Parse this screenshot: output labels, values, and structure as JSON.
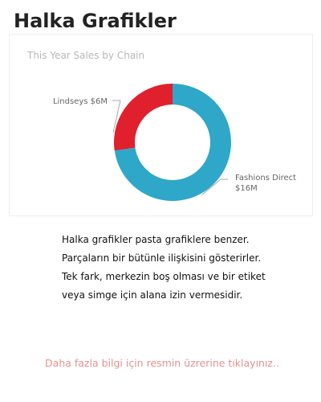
{
  "page": {
    "title": "Halka Grafikler"
  },
  "chart_data": {
    "type": "pie",
    "style": "donut",
    "title": "This Year Sales by Chain",
    "legend": "none",
    "categories": [
      "Lindseys",
      "Fashions Direct"
    ],
    "values": [
      6,
      16
    ],
    "labels": [
      "Lindseys $6M",
      [
        "Fashions Direct",
        "$16M"
      ]
    ],
    "colors": [
      "#e0202d",
      "#2ea7c9"
    ]
  },
  "description": {
    "lines": [
      "Halka grafikler pasta grafiklere benzer.",
      "Parçaların bir bütünle ilişkisini gösterirler.",
      "Tek fark, merkezin boş olması ve bir etiket",
      "veya simge için alana izin vermesidir."
    ]
  },
  "footer": {
    "link_text": "Daha fazla bilgi için resmin üzrerine tıklayınız.."
  }
}
